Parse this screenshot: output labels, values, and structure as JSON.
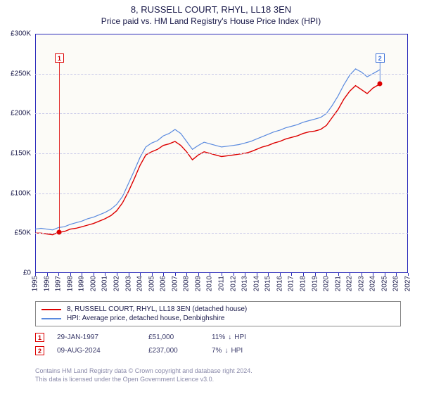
{
  "title": "8, RUSSELL COURT, RHYL, LL18 3EN",
  "subtitle": "Price paid vs. HM Land Registry's House Price Index (HPI)",
  "chart": {
    "type": "line",
    "plot_bg": "#fcfbf7",
    "border_color": "#2b2bbb",
    "grid_color": "#c8c8e8",
    "xlim": [
      1995,
      2027
    ],
    "ylim": [
      0,
      300
    ],
    "yticks": [
      0,
      50,
      100,
      150,
      200,
      250,
      300
    ],
    "ytick_labels": [
      "£0",
      "£50K",
      "£100K",
      "£150K",
      "£200K",
      "£250K",
      "£300K"
    ],
    "xticks": [
      1995,
      1996,
      1997,
      1998,
      1999,
      2000,
      2001,
      2002,
      2003,
      2004,
      2005,
      2006,
      2007,
      2008,
      2009,
      2010,
      2011,
      2012,
      2013,
      2014,
      2015,
      2016,
      2017,
      2018,
      2019,
      2020,
      2021,
      2022,
      2023,
      2024,
      2025,
      2026,
      2027
    ],
    "series": [
      {
        "name": "price_paid",
        "label": "8, RUSSELL COURT, RHYL, LL18 3EN (detached house)",
        "color": "#dd0000",
        "width": 1.4,
        "data": [
          [
            1995.0,
            50
          ],
          [
            1995.5,
            50
          ],
          [
            1996.0,
            49
          ],
          [
            1996.5,
            48
          ],
          [
            1997.0,
            51
          ],
          [
            1997.5,
            52
          ],
          [
            1998.0,
            55
          ],
          [
            1998.5,
            56
          ],
          [
            1999.0,
            58
          ],
          [
            1999.5,
            60
          ],
          [
            2000.0,
            62
          ],
          [
            2000.5,
            65
          ],
          [
            2001.0,
            68
          ],
          [
            2001.5,
            72
          ],
          [
            2002.0,
            78
          ],
          [
            2002.5,
            88
          ],
          [
            2003.0,
            102
          ],
          [
            2003.5,
            118
          ],
          [
            2004.0,
            135
          ],
          [
            2004.5,
            148
          ],
          [
            2005.0,
            152
          ],
          [
            2005.5,
            155
          ],
          [
            2006.0,
            160
          ],
          [
            2006.5,
            162
          ],
          [
            2007.0,
            165
          ],
          [
            2007.5,
            160
          ],
          [
            2008.0,
            152
          ],
          [
            2008.5,
            142
          ],
          [
            2009.0,
            148
          ],
          [
            2009.5,
            152
          ],
          [
            2010.0,
            150
          ],
          [
            2010.5,
            148
          ],
          [
            2011.0,
            146
          ],
          [
            2011.5,
            147
          ],
          [
            2012.0,
            148
          ],
          [
            2012.5,
            149
          ],
          [
            2013.0,
            150
          ],
          [
            2013.5,
            152
          ],
          [
            2014.0,
            155
          ],
          [
            2014.5,
            158
          ],
          [
            2015.0,
            160
          ],
          [
            2015.5,
            163
          ],
          [
            2016.0,
            165
          ],
          [
            2016.5,
            168
          ],
          [
            2017.0,
            170
          ],
          [
            2017.5,
            172
          ],
          [
            2018.0,
            175
          ],
          [
            2018.5,
            177
          ],
          [
            2019.0,
            178
          ],
          [
            2019.5,
            180
          ],
          [
            2020.0,
            185
          ],
          [
            2020.5,
            195
          ],
          [
            2021.0,
            205
          ],
          [
            2021.5,
            218
          ],
          [
            2022.0,
            228
          ],
          [
            2022.5,
            235
          ],
          [
            2023.0,
            230
          ],
          [
            2023.5,
            225
          ],
          [
            2024.0,
            232
          ],
          [
            2024.6,
            237
          ]
        ]
      },
      {
        "name": "hpi",
        "label": "HPI: Average price, detached house, Denbighshire",
        "color": "#5a8adf",
        "width": 1.2,
        "data": [
          [
            1995.0,
            55
          ],
          [
            1995.5,
            56
          ],
          [
            1996.0,
            55
          ],
          [
            1996.5,
            54
          ],
          [
            1997.0,
            57
          ],
          [
            1997.5,
            58
          ],
          [
            1998.0,
            61
          ],
          [
            1998.5,
            63
          ],
          [
            1999.0,
            65
          ],
          [
            1999.5,
            68
          ],
          [
            2000.0,
            70
          ],
          [
            2000.5,
            73
          ],
          [
            2001.0,
            76
          ],
          [
            2001.5,
            80
          ],
          [
            2002.0,
            86
          ],
          [
            2002.5,
            96
          ],
          [
            2003.0,
            112
          ],
          [
            2003.5,
            128
          ],
          [
            2004.0,
            145
          ],
          [
            2004.5,
            158
          ],
          [
            2005.0,
            163
          ],
          [
            2005.5,
            166
          ],
          [
            2006.0,
            172
          ],
          [
            2006.5,
            175
          ],
          [
            2007.0,
            180
          ],
          [
            2007.5,
            175
          ],
          [
            2008.0,
            165
          ],
          [
            2008.5,
            155
          ],
          [
            2009.0,
            160
          ],
          [
            2009.5,
            164
          ],
          [
            2010.0,
            162
          ],
          [
            2010.5,
            160
          ],
          [
            2011.0,
            158
          ],
          [
            2011.5,
            159
          ],
          [
            2012.0,
            160
          ],
          [
            2012.5,
            161
          ],
          [
            2013.0,
            163
          ],
          [
            2013.5,
            165
          ],
          [
            2014.0,
            168
          ],
          [
            2014.5,
            171
          ],
          [
            2015.0,
            174
          ],
          [
            2015.5,
            177
          ],
          [
            2016.0,
            179
          ],
          [
            2016.5,
            182
          ],
          [
            2017.0,
            184
          ],
          [
            2017.5,
            186
          ],
          [
            2018.0,
            189
          ],
          [
            2018.5,
            191
          ],
          [
            2019.0,
            193
          ],
          [
            2019.5,
            195
          ],
          [
            2020.0,
            200
          ],
          [
            2020.5,
            210
          ],
          [
            2021.0,
            222
          ],
          [
            2021.5,
            236
          ],
          [
            2022.0,
            248
          ],
          [
            2022.5,
            256
          ],
          [
            2023.0,
            252
          ],
          [
            2023.5,
            246
          ],
          [
            2024.0,
            250
          ],
          [
            2024.6,
            255
          ]
        ]
      }
    ],
    "markers": [
      {
        "n": "1",
        "color": "red",
        "x": 1997.08,
        "y": 51,
        "box_y": 270,
        "point": true
      },
      {
        "n": "2",
        "color": "blue",
        "x": 2024.6,
        "y": 237,
        "box_y": 270,
        "point": true
      }
    ]
  },
  "legend": {
    "items": [
      {
        "color": "#dd0000",
        "label": "8, RUSSELL COURT, RHYL, LL18 3EN (detached house)"
      },
      {
        "color": "#5a8adf",
        "label": "HPI: Average price, detached house, Denbighshire"
      }
    ]
  },
  "transactions": [
    {
      "n": "1",
      "border": "#dd0000",
      "color": "#c00",
      "date": "29-JAN-1997",
      "price": "£51,000",
      "delta": "11%",
      "arrow": "↓",
      "vs": "HPI"
    },
    {
      "n": "2",
      "border": "#dd0000",
      "color": "#c00",
      "date": "09-AUG-2024",
      "price": "£237,000",
      "delta": "7%",
      "arrow": "↓",
      "vs": "HPI"
    }
  ],
  "footer": {
    "line1": "Contains HM Land Registry data © Crown copyright and database right 2024.",
    "line2": "This data is licensed under the Open Government Licence v3.0."
  }
}
